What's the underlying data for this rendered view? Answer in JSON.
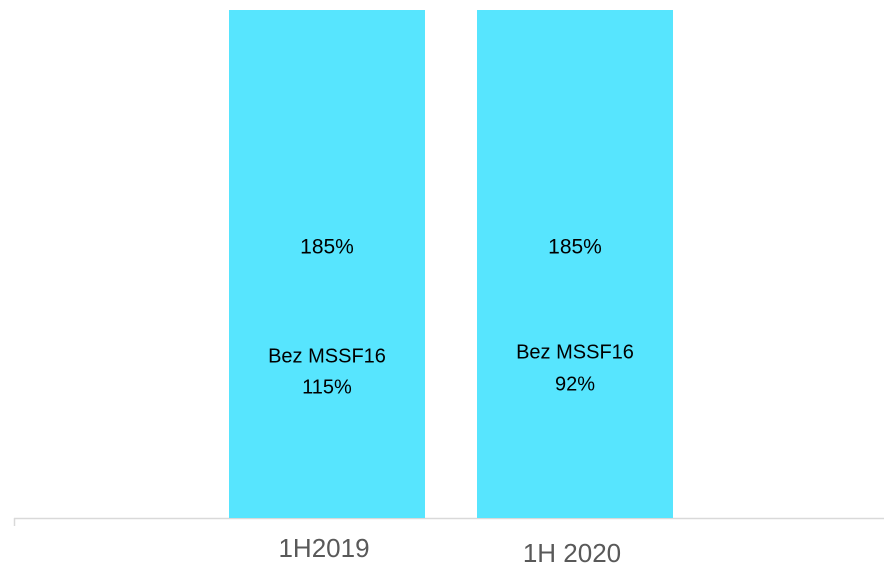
{
  "chart_data": {
    "type": "bar",
    "categories": [
      "1H2019",
      "1H 2020"
    ],
    "values": [
      185,
      185
    ],
    "value_labels": [
      "185%",
      "185%"
    ],
    "annotations": [
      [
        "Bez MSSF16",
        "115%"
      ],
      [
        "Bez MSSF16",
        "92%"
      ]
    ],
    "color": "#57e5fe"
  }
}
